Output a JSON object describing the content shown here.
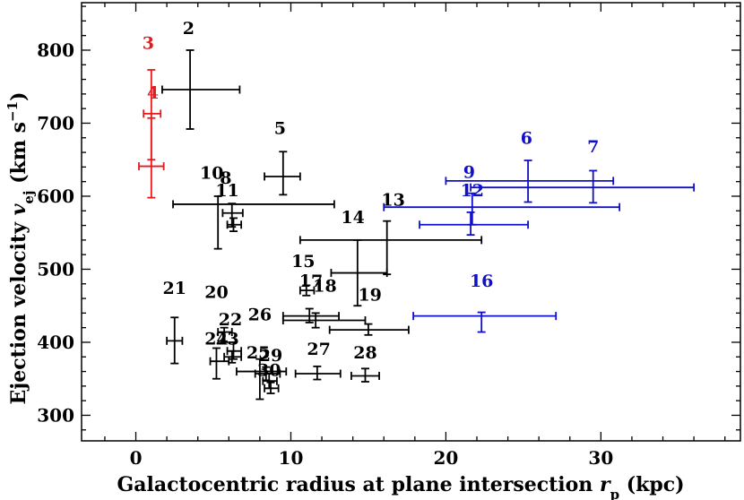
{
  "chart_data": {
    "type": "scatter",
    "title": "",
    "xlabel": "Galactocentric radius at plane intersection r_p (kpc)",
    "xlabel_main": "Galactocentric radius at plane intersection ",
    "xlabel_var": "r",
    "xlabel_sub": "p",
    "xlabel_unit": " (kpc)",
    "ylabel": "Ejection velocity v_ej (km s^-1)",
    "ylabel_main": "Ejection velocity ",
    "ylabel_var": "v",
    "ylabel_sub": "ej",
    "ylabel_unit_open": " (km s",
    "ylabel_sup": "−1",
    "ylabel_unit_close": ")",
    "xlim": [
      -3.5,
      39
    ],
    "ylim": [
      265,
      865
    ],
    "xticks": [
      0,
      10,
      20,
      30
    ],
    "yticks": [
      300,
      400,
      500,
      600,
      700,
      800
    ],
    "xticklabels": [
      "0",
      "10",
      "20",
      "30"
    ],
    "yticklabels": [
      "300",
      "400",
      "500",
      "600",
      "700",
      "800"
    ],
    "grid": false,
    "colors": {
      "red": "#e41a1c",
      "black": "#000000",
      "blue": "#1010cc"
    },
    "points": [
      {
        "label": "2",
        "x": 3.5,
        "y": 746,
        "xerr": [
          1.7,
          6.7
        ],
        "yerr": [
          692,
          800
        ],
        "color": "black"
      },
      {
        "label": "3",
        "x": 1.0,
        "y": 713,
        "xerr": [
          0.5,
          1.6
        ],
        "yerr": [
          650,
          773
        ],
        "color": "red"
      },
      {
        "label": "4",
        "x": 1.0,
        "y": 641,
        "xerr": [
          0.2,
          1.8
        ],
        "yerr": [
          598,
          707
        ],
        "color": "red"
      },
      {
        "label": "5",
        "x": 9.5,
        "y": 627,
        "xerr": [
          8.3,
          10.6
        ],
        "yerr": [
          602,
          661
        ],
        "color": "black"
      },
      {
        "label": "6",
        "x": 25.3,
        "y": 621,
        "xerr": [
          20.0,
          30.8
        ],
        "yerr": [
          592,
          649
        ],
        "color": "blue"
      },
      {
        "label": "7",
        "x": 29.5,
        "y": 612,
        "xerr": [
          21.6,
          36.0
        ],
        "yerr": [
          591,
          635
        ],
        "color": "blue"
      },
      {
        "label": "8",
        "x": 6.2,
        "y": 577,
        "xerr": [
          5.6,
          6.9
        ],
        "yerr": [
          558,
          590
        ],
        "color": "black"
      },
      {
        "label": "9",
        "x": 21.7,
        "y": 585,
        "xerr": [
          16.0,
          31.2
        ],
        "yerr": [
          561,
          604
        ],
        "color": "blue"
      },
      {
        "label": "10",
        "x": 5.3,
        "y": 589,
        "xerr": [
          2.4,
          12.8
        ],
        "yerr": [
          528,
          600
        ],
        "color": "black"
      },
      {
        "label": "11",
        "x": 6.3,
        "y": 561,
        "xerr": [
          5.9,
          6.8
        ],
        "yerr": [
          552,
          570
        ],
        "color": "black"
      },
      {
        "label": "12",
        "x": 21.6,
        "y": 561,
        "xerr": [
          18.3,
          25.3
        ],
        "yerr": [
          547,
          578
        ],
        "color": "blue"
      },
      {
        "label": "13",
        "x": 16.2,
        "y": 540,
        "xerr": [
          10.6,
          22.3
        ],
        "yerr": [
          493,
          566
        ],
        "color": "black"
      },
      {
        "label": "14",
        "x": 14.3,
        "y": 495,
        "xerr": [
          12.6,
          16.2
        ],
        "yerr": [
          450,
          540
        ],
        "color": "black"
      },
      {
        "label": "15",
        "x": 11.0,
        "y": 471,
        "xerr": [
          10.6,
          11.5
        ],
        "yerr": [
          464,
          478
        ],
        "color": "black"
      },
      {
        "label": "16",
        "x": 22.3,
        "y": 436,
        "xerr": [
          17.9,
          27.1
        ],
        "yerr": [
          414,
          441
        ],
        "color": "blue"
      },
      {
        "label": "17",
        "x": 11.2,
        "y": 436,
        "xerr": [
          9.5,
          13.1
        ],
        "yerr": [
          427,
          446
        ],
        "color": "black"
      },
      {
        "label": "18",
        "x": 11.6,
        "y": 430,
        "xerr": [
          9.5,
          14.8
        ],
        "yerr": [
          420,
          440
        ],
        "color": "black"
      },
      {
        "label": "19",
        "x": 15.0,
        "y": 417,
        "xerr": [
          12.5,
          17.6
        ],
        "yerr": [
          410,
          425
        ],
        "color": "black"
      },
      {
        "label": "20",
        "x": 5.7,
        "y": 414,
        "xerr": [
          5.3,
          6.2
        ],
        "yerr": [
          400,
          420
        ],
        "color": "black"
      },
      {
        "label": "21",
        "x": 2.5,
        "y": 402,
        "xerr": [
          2.0,
          3.0
        ],
        "yerr": [
          371,
          434
        ],
        "color": "black"
      },
      {
        "label": "22",
        "x": 6.3,
        "y": 388,
        "xerr": [
          5.9,
          6.8
        ],
        "yerr": [
          377,
          400
        ],
        "color": "black"
      },
      {
        "label": "23",
        "x": 6.2,
        "y": 380,
        "xerr": [
          5.7,
          6.8
        ],
        "yerr": [
          372,
          388
        ],
        "color": "black"
      },
      {
        "label": "24",
        "x": 5.2,
        "y": 374,
        "xerr": [
          4.8,
          6.0
        ],
        "yerr": [
          350,
          392
        ],
        "color": "black"
      },
      {
        "label": "25",
        "x": 8.0,
        "y": 360,
        "xerr": [
          6.5,
          9.7
        ],
        "yerr": [
          322,
          377
        ],
        "color": "black"
      },
      {
        "label": "26",
        "x": 8.4,
        "y": 357,
        "xerr": [
          7.7,
          9.3
        ],
        "yerr": [
          348,
          366
        ],
        "color": "black"
      },
      {
        "label": "27",
        "x": 11.7,
        "y": 357,
        "xerr": [
          10.3,
          13.2
        ],
        "yerr": [
          349,
          367
        ],
        "color": "black"
      },
      {
        "label": "28",
        "x": 14.8,
        "y": 354,
        "xerr": [
          13.9,
          15.7
        ],
        "yerr": [
          346,
          364
        ],
        "color": "black"
      },
      {
        "label": "29",
        "x": 8.6,
        "y": 347,
        "xerr": [
          8.2,
          9.1
        ],
        "yerr": [
          337,
          357
        ],
        "color": "black"
      },
      {
        "label": "30",
        "x": 8.7,
        "y": 337,
        "xerr": [
          8.3,
          9.2
        ],
        "yerr": [
          330,
          345
        ],
        "color": "black"
      }
    ],
    "labels": [
      {
        "text": "2",
        "x": 3.4,
        "y": 822,
        "color": "black"
      },
      {
        "text": "3",
        "x": 0.8,
        "y": 802,
        "color": "red"
      },
      {
        "text": "4",
        "x": 1.1,
        "y": 734,
        "color": "red"
      },
      {
        "text": "5",
        "x": 9.3,
        "y": 685,
        "color": "black"
      },
      {
        "text": "6",
        "x": 25.2,
        "y": 672,
        "color": "blue"
      },
      {
        "text": "7",
        "x": 29.5,
        "y": 660,
        "color": "blue"
      },
      {
        "text": "9",
        "x": 21.5,
        "y": 625,
        "color": "blue"
      },
      {
        "text": "10",
        "x": 4.9,
        "y": 624,
        "color": "black"
      },
      {
        "text": "8",
        "x": 5.8,
        "y": 617,
        "color": "black"
      },
      {
        "text": "11",
        "x": 5.9,
        "y": 600,
        "color": "black"
      },
      {
        "text": "12",
        "x": 21.7,
        "y": 600,
        "color": "blue"
      },
      {
        "text": "13",
        "x": 16.6,
        "y": 587,
        "color": "black"
      },
      {
        "text": "14",
        "x": 14.0,
        "y": 563,
        "color": "black"
      },
      {
        "text": "15",
        "x": 10.8,
        "y": 503,
        "color": "black"
      },
      {
        "text": "16",
        "x": 22.3,
        "y": 476,
        "color": "blue"
      },
      {
        "text": "17",
        "x": 11.3,
        "y": 476,
        "color": "black"
      },
      {
        "text": "18",
        "x": 12.2,
        "y": 469,
        "color": "black"
      },
      {
        "text": "19",
        "x": 15.1,
        "y": 457,
        "color": "black"
      },
      {
        "text": "20",
        "x": 5.2,
        "y": 461,
        "color": "black"
      },
      {
        "text": "21",
        "x": 2.5,
        "y": 466,
        "color": "black"
      },
      {
        "text": "22",
        "x": 6.1,
        "y": 423,
        "color": "black"
      },
      {
        "text": "23",
        "x": 5.9,
        "y": 397,
        "color": "black"
      },
      {
        "text": "24",
        "x": 5.2,
        "y": 397,
        "color": "black"
      },
      {
        "text": "25",
        "x": 7.9,
        "y": 378,
        "color": "black"
      },
      {
        "text": "26",
        "x": 8.0,
        "y": 430,
        "color": "black"
      },
      {
        "text": "27",
        "x": 11.8,
        "y": 383,
        "color": "black"
      },
      {
        "text": "28",
        "x": 14.8,
        "y": 378,
        "color": "black"
      },
      {
        "text": "29",
        "x": 8.7,
        "y": 374,
        "color": "black"
      },
      {
        "text": "30",
        "x": 8.6,
        "y": 354,
        "color": "black"
      }
    ]
  }
}
